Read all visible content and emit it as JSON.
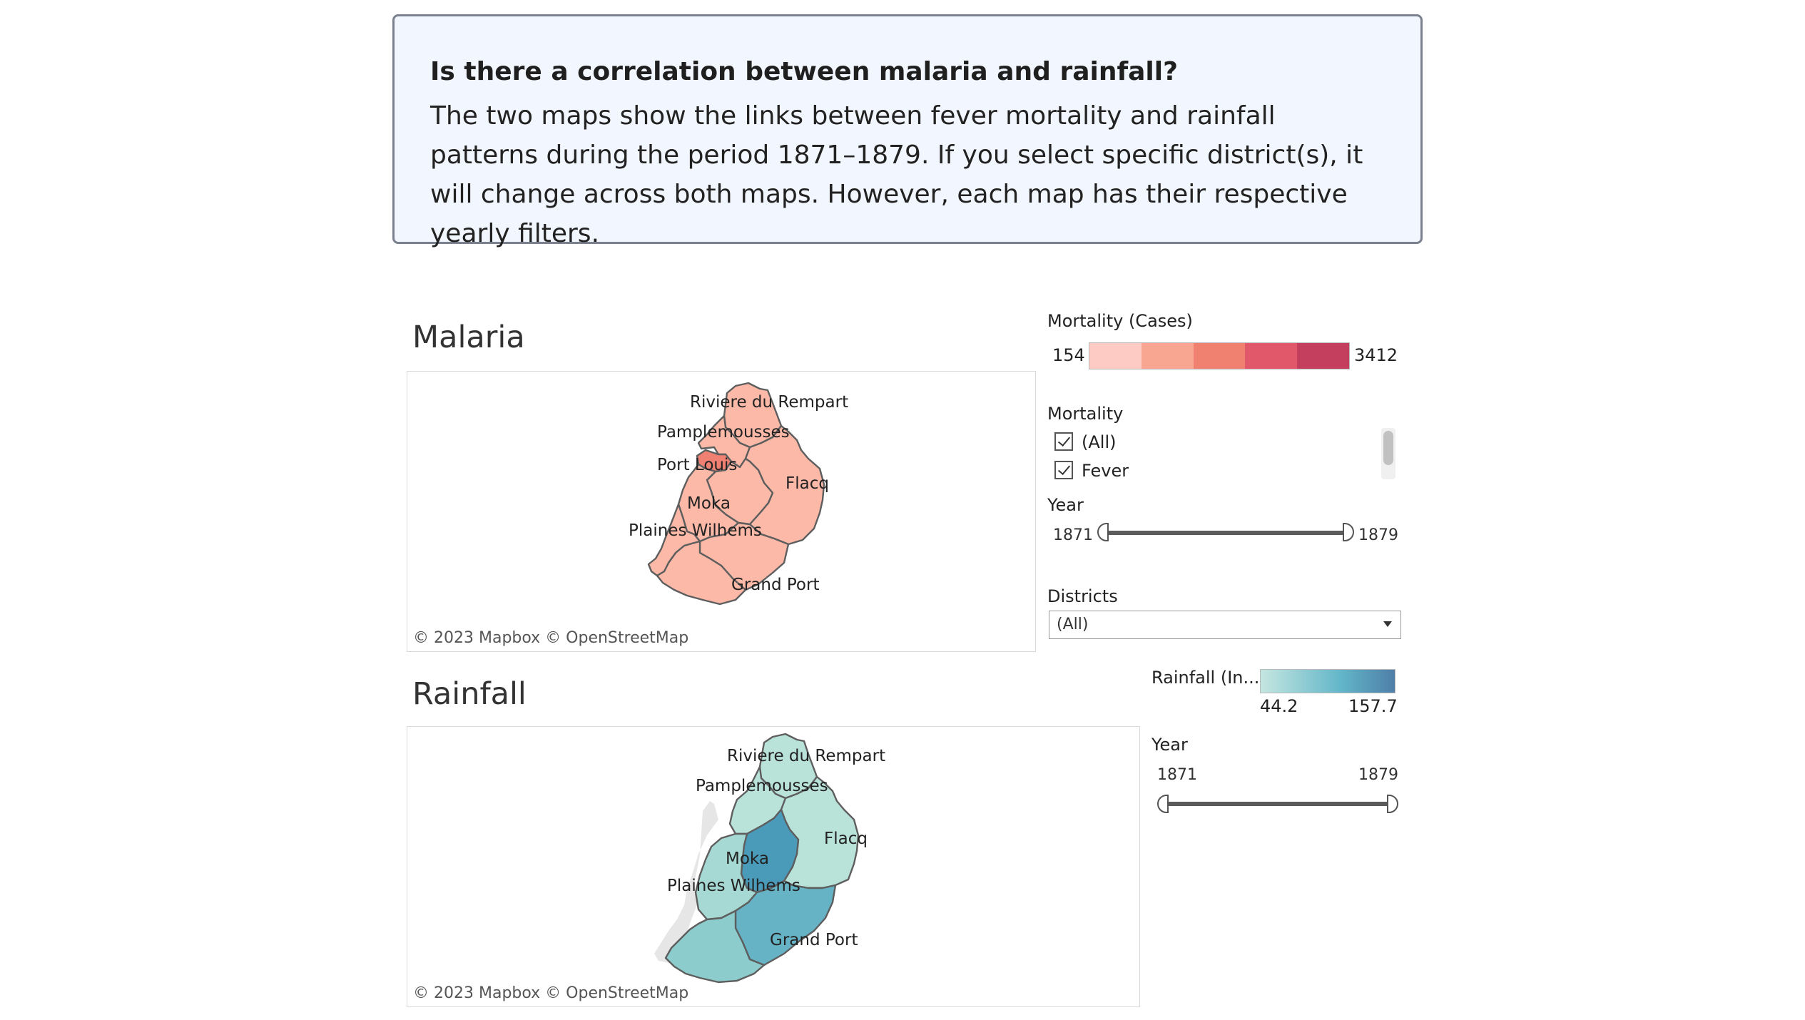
{
  "intro": {
    "question": "Is there a correlation between malaria and rainfall?",
    "body": "The two maps show the links between fever mortality and rainfall patterns during the period 1871–1879. If you select specific district(s), it will change across both maps. However, each map has their respective yearly filters."
  },
  "malaria": {
    "title": "Malaria",
    "credit": "© 2023 Mapbox  © OpenStreetMap",
    "district_labels": [
      "Riviere du Rempart",
      "Pamplemousses",
      "Port Louis",
      "Flacq",
      "Moka",
      "Plaines Wilhems",
      "Grand Port"
    ],
    "legend": {
      "title": "Mortality (Cases)",
      "min": "154",
      "max": "3412",
      "colors": [
        "#fdcbc4",
        "#f8a591",
        "#f0806f",
        "#e0586a",
        "#c43e5e"
      ]
    },
    "filter": {
      "title": "Mortality",
      "options": [
        "(All)",
        "Fever"
      ]
    },
    "year": {
      "title": "Year",
      "min": "1871",
      "max": "1879"
    },
    "districts": {
      "title": "Districts",
      "value": "(All)"
    }
  },
  "rainfall": {
    "title": "Rainfall",
    "credit": "© 2023 Mapbox  © OpenStreetMap",
    "district_labels": [
      "Riviere du Rempart",
      "Pamplemousses",
      "Flacq",
      "Moka",
      "Plaines Wilhems",
      "Grand Port"
    ],
    "legend": {
      "title": "Rainfall (In...",
      "min": "44.2",
      "max": "157.7",
      "color_low": "#c5e6e0",
      "color_mid": "#62b6c9",
      "color_high": "#4f7ea8"
    },
    "year": {
      "title": "Year",
      "min": "1871",
      "max": "1879"
    }
  },
  "colors": {
    "malaria_fill": "#fcb9a8",
    "port_louis_fill": "#ef8072",
    "rain_low": "#b9e2d9",
    "rain_mid": "#8ccccc",
    "rain_high": "#4a9bba",
    "district_stroke": "#5e5e5e"
  }
}
